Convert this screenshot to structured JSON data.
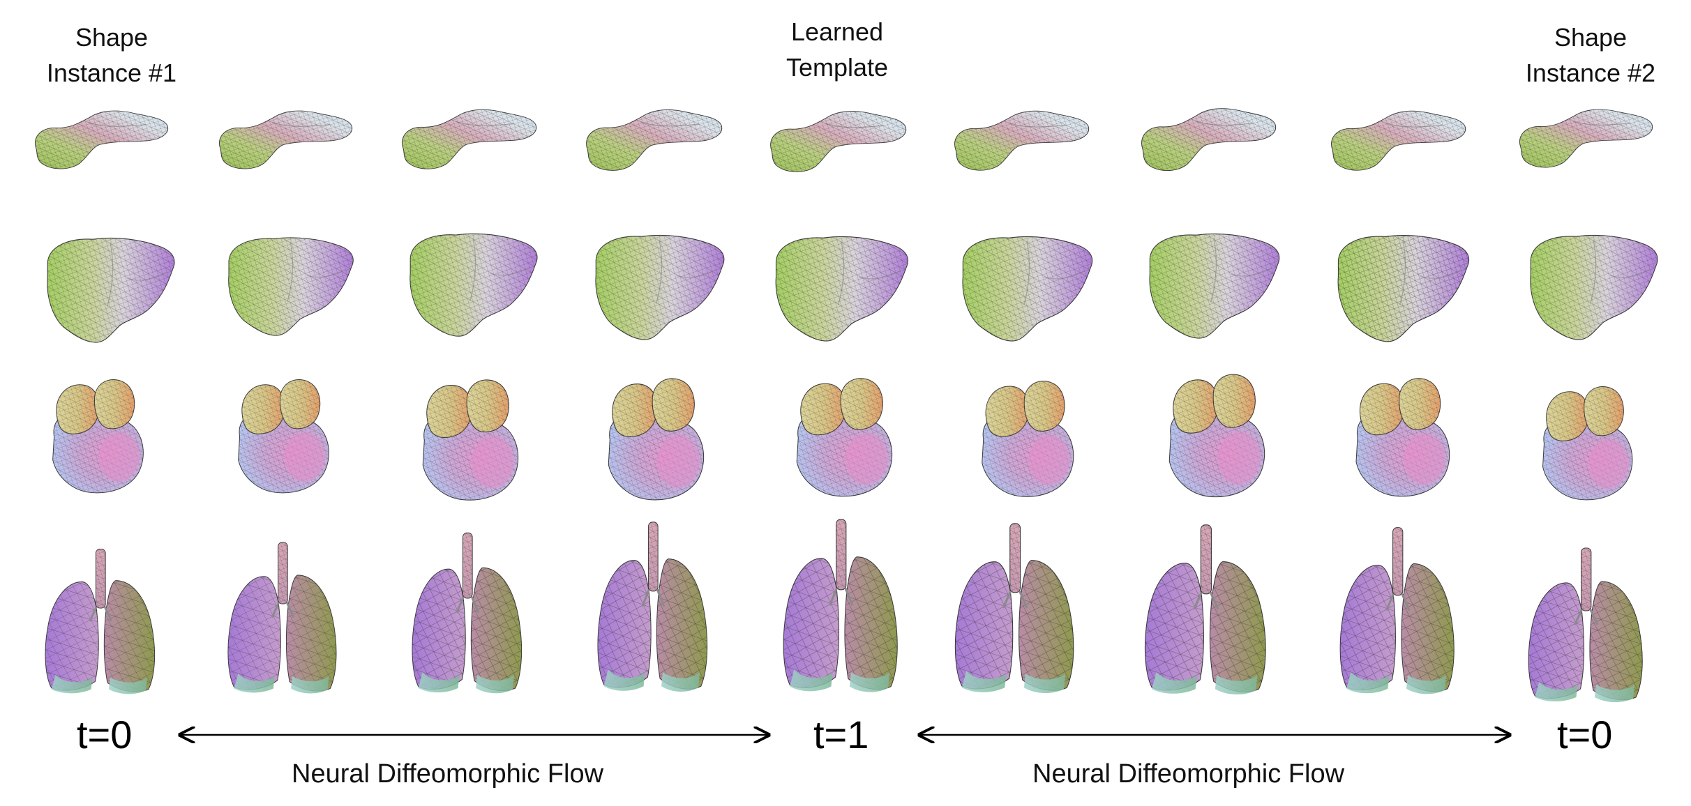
{
  "headers": {
    "left": "Shape\nInstance #1",
    "center": "Learned\nTemplate",
    "right": "Shape\nInstance #2"
  },
  "time_labels": {
    "left": "t=0",
    "center": "t=1",
    "right": "t=0"
  },
  "flow_labels": {
    "left": "Neural Diffeomorphic Flow",
    "right": "Neural Diffeomorphic Flow"
  },
  "rows": [
    "pancreas",
    "liver",
    "heart",
    "lungs"
  ],
  "columns": 9,
  "colors": {
    "green": "#a9cc6a",
    "pink": "#d9a3b8",
    "lilac": "#b585d8",
    "pale": "#dfe3ea",
    "tan": "#d6c47f",
    "blue": "#b9c2ee",
    "mesh": "#2a2a2a"
  }
}
